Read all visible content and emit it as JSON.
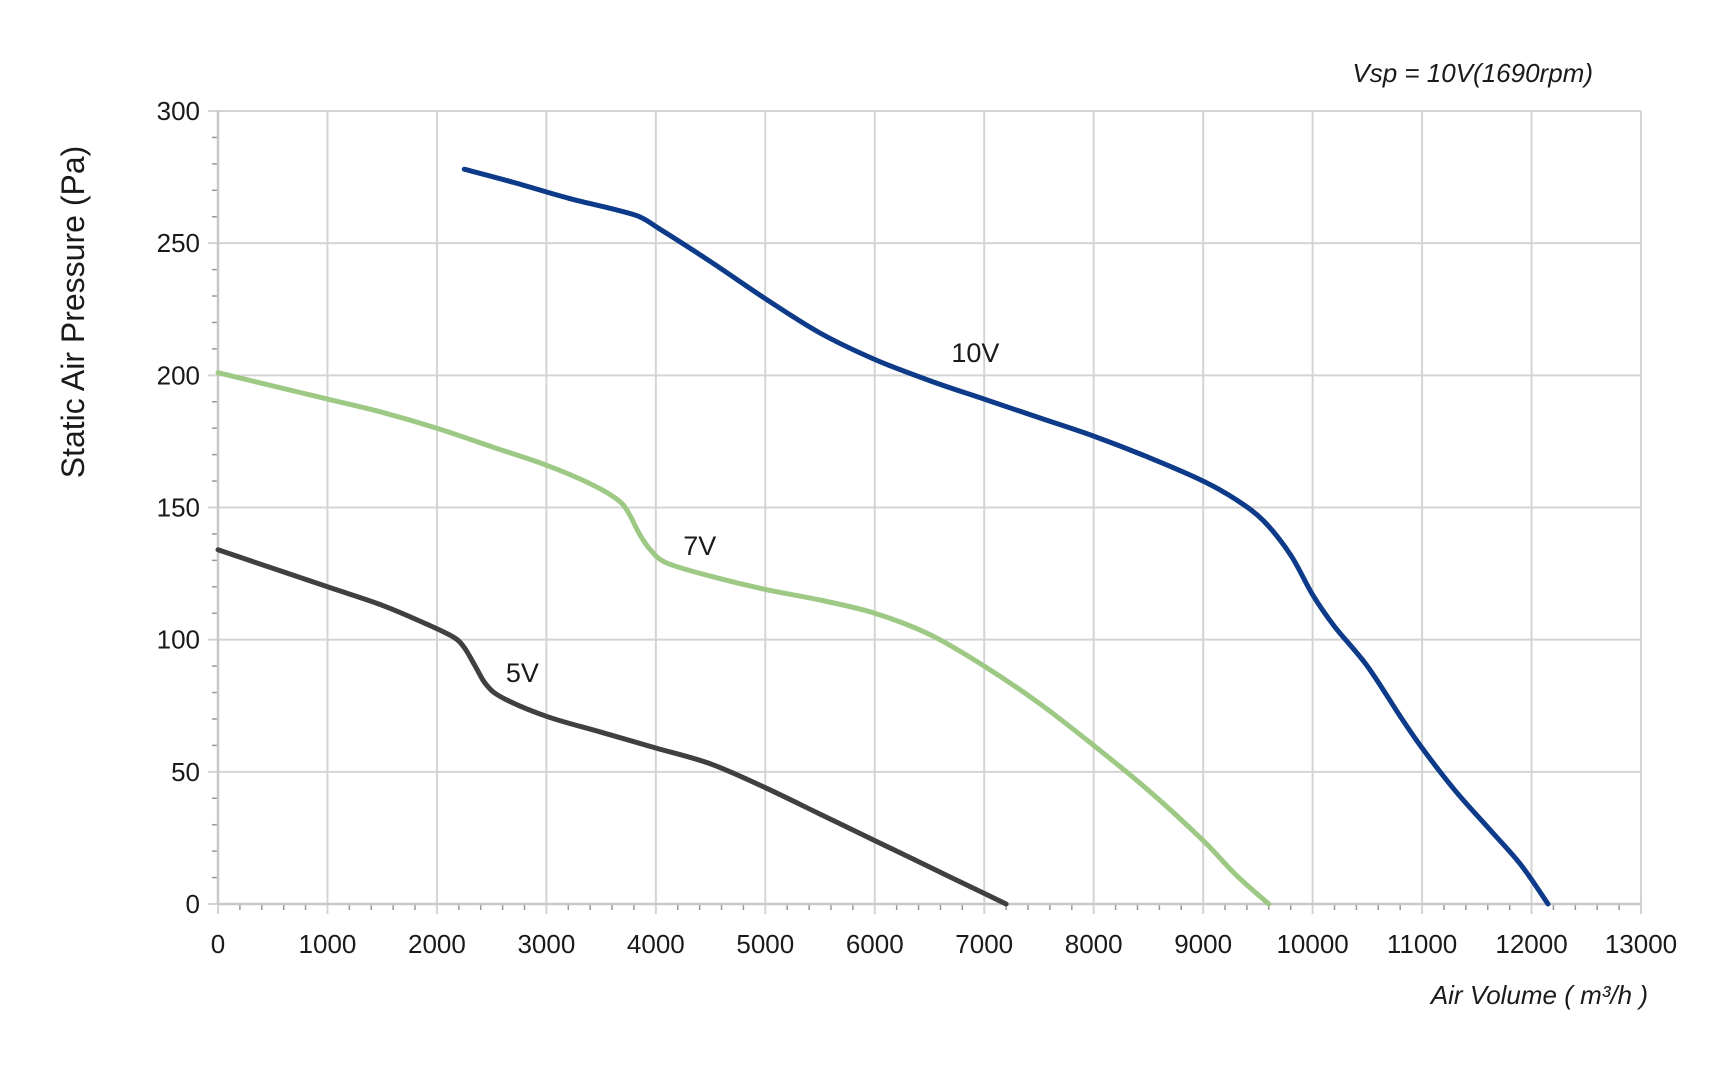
{
  "chart_data": {
    "type": "line",
    "subtitle": "Vsp = 10V(1690rpm)",
    "xlabel": "Air Volume ( m³/h )",
    "ylabel": "Static Air Pressure  (Pa)",
    "xlim": [
      0,
      13000
    ],
    "ylim": [
      0,
      300
    ],
    "x_ticks": [
      0,
      1000,
      2000,
      3000,
      4000,
      5000,
      6000,
      7000,
      8000,
      9000,
      10000,
      11000,
      12000,
      13000
    ],
    "y_ticks": [
      0,
      50,
      100,
      150,
      200,
      250,
      300
    ],
    "grid": true,
    "legend": "none",
    "series": [
      {
        "name": "10V",
        "color": "#0d3b8a",
        "label_at": [
          6700,
          205
        ],
        "points": [
          [
            2250,
            278
          ],
          [
            2700,
            273
          ],
          [
            3200,
            267
          ],
          [
            3600,
            263
          ],
          [
            3850,
            260
          ],
          [
            4050,
            255
          ],
          [
            4500,
            243
          ],
          [
            5000,
            229
          ],
          [
            5500,
            216
          ],
          [
            6000,
            206
          ],
          [
            6500,
            198
          ],
          [
            7000,
            191
          ],
          [
            7500,
            184
          ],
          [
            8000,
            177
          ],
          [
            8500,
            169
          ],
          [
            9000,
            160
          ],
          [
            9300,
            153
          ],
          [
            9550,
            145
          ],
          [
            9800,
            132
          ],
          [
            10000,
            117
          ],
          [
            10200,
            105
          ],
          [
            10500,
            90
          ],
          [
            10800,
            71
          ],
          [
            11000,
            59
          ],
          [
            11300,
            43
          ],
          [
            11600,
            29
          ],
          [
            11900,
            15
          ],
          [
            12150,
            0
          ]
        ]
      },
      {
        "name": "7V",
        "color": "#9dc985",
        "label_at": [
          4250,
          132
        ],
        "points": [
          [
            0,
            201
          ],
          [
            500,
            196
          ],
          [
            1000,
            191
          ],
          [
            1500,
            186
          ],
          [
            2000,
            180
          ],
          [
            2500,
            173
          ],
          [
            3000,
            166
          ],
          [
            3400,
            159
          ],
          [
            3650,
            153
          ],
          [
            3750,
            148
          ],
          [
            3850,
            140
          ],
          [
            3950,
            134
          ],
          [
            4100,
            129
          ],
          [
            4500,
            124
          ],
          [
            5000,
            119
          ],
          [
            5500,
            115
          ],
          [
            6000,
            110
          ],
          [
            6500,
            102
          ],
          [
            7000,
            90
          ],
          [
            7500,
            76
          ],
          [
            8000,
            60
          ],
          [
            8500,
            43
          ],
          [
            9000,
            24
          ],
          [
            9300,
            11
          ],
          [
            9600,
            0
          ]
        ]
      },
      {
        "name": "5V",
        "color": "#404040",
        "label_at": [
          2630,
          84
        ],
        "points": [
          [
            0,
            134
          ],
          [
            500,
            127
          ],
          [
            1000,
            120
          ],
          [
            1500,
            113
          ],
          [
            1900,
            106
          ],
          [
            2150,
            101
          ],
          [
            2250,
            97
          ],
          [
            2350,
            90
          ],
          [
            2450,
            83
          ],
          [
            2600,
            78
          ],
          [
            3000,
            71
          ],
          [
            3500,
            65
          ],
          [
            4000,
            59
          ],
          [
            4500,
            53
          ],
          [
            5000,
            44
          ],
          [
            5500,
            34
          ],
          [
            6000,
            24
          ],
          [
            6500,
            14
          ],
          [
            7000,
            4
          ],
          [
            7200,
            0
          ]
        ]
      }
    ]
  }
}
